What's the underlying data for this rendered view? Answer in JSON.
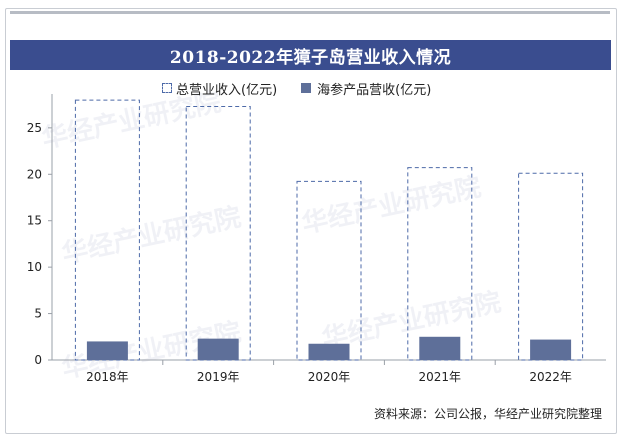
{
  "header": {
    "title": "2018-2022年獐子岛营业收入情况"
  },
  "legend": {
    "total_label": "总营业收入(亿元)",
    "seafood_label": "海参产品营收(亿元)"
  },
  "source": "资料来源：公司公报，华经产业研究院整理",
  "watermark": "华经产业研究院",
  "colors": {
    "title_bg": "#3a4d8f",
    "total_outline": "#4d6aa8",
    "seafood_bar": "#5e6f99"
  },
  "chart_data": {
    "type": "bar",
    "categories": [
      "2018年",
      "2019年",
      "2020年",
      "2021年",
      "2022年"
    ],
    "series": [
      {
        "name": "总营业收入(亿元)",
        "values": [
          27.98,
          27.3,
          19.23,
          20.72,
          20.11
        ]
      },
      {
        "name": "海参产品营收(亿元)",
        "values": [
          2.0,
          2.3,
          1.75,
          2.5,
          2.2
        ]
      }
    ],
    "y_ticks": [
      0,
      5,
      10,
      15,
      20,
      25
    ],
    "ylim": [
      0,
      28
    ],
    "grid": false,
    "legend_position": "top"
  }
}
